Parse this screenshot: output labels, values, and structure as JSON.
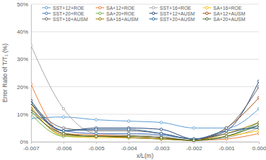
{
  "chart_data": {
    "type": "line",
    "x_label": "x/L(m)",
    "y_label": "Error Ratio of T/T₁ (%)",
    "x": [
      -0.007,
      -0.006,
      -0.005,
      -0.004,
      -0.003,
      -0.002,
      -0.001,
      0.0
    ],
    "xlim": [
      -0.007,
      0.0
    ],
    "xticks": [
      -0.007,
      -0.006,
      -0.005,
      -0.004,
      -0.003,
      -0.002,
      -0.001,
      {
        "value": 0,
        "label": "0.000"
      }
    ],
    "ylim": [
      0,
      50
    ],
    "yticks": [
      {
        "value": 0,
        "label": "0%"
      },
      {
        "value": 10,
        "label": "10%"
      },
      {
        "value": 20,
        "label": "20%"
      },
      {
        "value": 30,
        "label": "30%"
      },
      {
        "value": 40,
        "label": "40%"
      },
      {
        "value": 50,
        "label": "50%"
      }
    ],
    "grid": true,
    "legend": "top",
    "marker": "circle",
    "series": [
      {
        "name": "SST+12+ROE",
        "color": "#5b9bd5",
        "values": [
          8.5,
          9,
          8,
          7.5,
          7,
          5,
          5,
          12
        ]
      },
      {
        "name": "SA+12+ROE",
        "color": "#ed7d31",
        "values": [
          21,
          3,
          2.5,
          2,
          1.5,
          0.5,
          1,
          3
        ]
      },
      {
        "name": "SST+16+ROE",
        "color": "#a5a5a5",
        "values": [
          35,
          12,
          3,
          2.5,
          2,
          0.5,
          1.5,
          5
        ]
      },
      {
        "name": "SA+16+ROE",
        "color": "#ffc000",
        "values": [
          13,
          2,
          1.5,
          1.5,
          1,
          0.5,
          2,
          4
        ]
      },
      {
        "name": "SST+20+ROE",
        "color": "#4472c4",
        "values": [
          12,
          4,
          3,
          3,
          2.5,
          1,
          3,
          6
        ]
      },
      {
        "name": "SA+20+ROE",
        "color": "#70ad47",
        "values": [
          10,
          2,
          2,
          1.5,
          1,
          0.5,
          2,
          7
        ]
      },
      {
        "name": "SST+12+AUSM",
        "color": "#264478",
        "values": [
          15,
          4,
          5,
          5,
          4.5,
          1,
          4,
          22
        ]
      },
      {
        "name": "SA+12+AUSM",
        "color": "#9e480e",
        "values": [
          14,
          3,
          2,
          2,
          1.5,
          0.5,
          5,
          16
        ]
      },
      {
        "name": "SST+16+AUSM",
        "color": "#636363",
        "values": [
          14,
          5,
          4,
          4,
          3,
          1,
          5,
          20
        ]
      },
      {
        "name": "SA+16+AUSM",
        "color": "#997300",
        "values": [
          12,
          2.5,
          2,
          1.5,
          1,
          0.5,
          3,
          7
        ]
      },
      {
        "name": "SST+20+AUSM",
        "color": "#255e91",
        "values": [
          14,
          4,
          4.5,
          4.5,
          3,
          1,
          4,
          5
        ]
      },
      {
        "name": "SA+20+AUSM",
        "color": "#43682b",
        "values": [
          11,
          3,
          2,
          2,
          1.5,
          0.5,
          2,
          6
        ]
      }
    ]
  }
}
